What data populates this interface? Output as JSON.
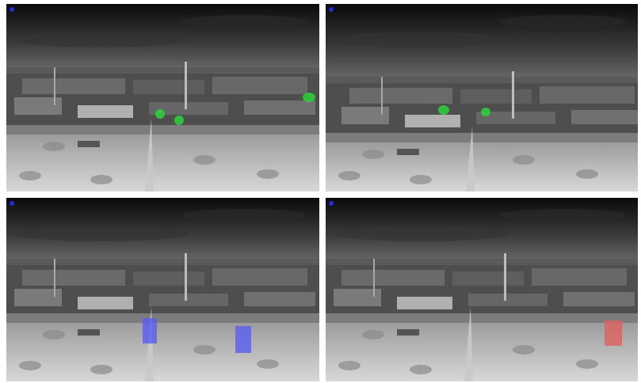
{
  "panels": [
    {
      "id": "top-left",
      "indicator_color": "#1e2bd6",
      "detections": [
        {
          "color": "#2bd43a",
          "shape": "blob"
        },
        {
          "color": "#2bd43a",
          "shape": "blob"
        },
        {
          "color": "#2bd43a",
          "shape": "blob"
        }
      ]
    },
    {
      "id": "top-right",
      "indicator_color": "#1e2bd6",
      "detections": [
        {
          "color": "#2bd43a",
          "shape": "blob"
        },
        {
          "color": "#2bd43a",
          "shape": "blob"
        }
      ]
    },
    {
      "id": "bottom-left",
      "indicator_color": "#1e2bd6",
      "detections": [
        {
          "color": "#5a5cf0",
          "shape": "box"
        },
        {
          "color": "#5a5cf0",
          "shape": "box"
        }
      ]
    },
    {
      "id": "bottom-right",
      "indicator_color": "#1e2bd6",
      "detections": [
        {
          "color": "#e0605f",
          "shape": "box"
        }
      ]
    }
  ]
}
